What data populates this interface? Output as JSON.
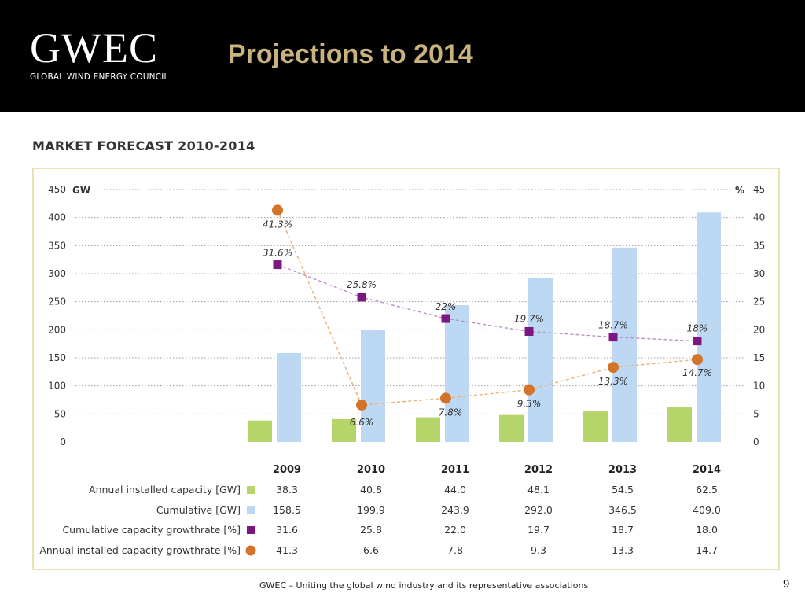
{
  "header": {
    "logo_text": "GWEC",
    "logo_subtitle": "GLOBAL WIND ENERGY COUNCIL",
    "title": "Projections to 2014"
  },
  "section_title": "MARKET FORECAST 2010-2014",
  "footer": {
    "text": "GWEC – Uniting the global wind industry and its representative associations",
    "page_number": "9"
  },
  "colors": {
    "header_bg": "#000000",
    "title": "#c8b27d",
    "annual_bar": "#b5d56a",
    "cumulative_bar": "#bcd8f3",
    "cum_growth": "#7b177f",
    "annual_growth": "#d4732a",
    "frame": "#e9e2b3"
  },
  "chart_data": {
    "type": "bar",
    "categories": [
      "2009",
      "2010",
      "2011",
      "2012",
      "2013",
      "2014"
    ],
    "left_axis": {
      "unit": "GW",
      "range": [
        0,
        450
      ],
      "ticks": [
        "0",
        "50",
        "100",
        "150",
        "200",
        "250",
        "300",
        "350",
        "400",
        "450"
      ]
    },
    "right_axis": {
      "unit": "%",
      "range": [
        0,
        45
      ],
      "ticks": [
        "0",
        "5",
        "10",
        "15",
        "20",
        "25",
        "30",
        "35",
        "40",
        "45"
      ]
    },
    "grid": true,
    "series": [
      {
        "name": "Annual installed capacity [GW]",
        "kind": "bar",
        "axis": "left",
        "color": "#b5d56a",
        "values": [
          38.3,
          40.8,
          44.0,
          48.1,
          54.5,
          62.5
        ],
        "table_values": [
          "38.3",
          "40.8",
          "44.0",
          "48.1",
          "54.5",
          "62.5"
        ]
      },
      {
        "name": "Cumulative [GW]",
        "kind": "bar",
        "axis": "left",
        "color": "#bcd8f3",
        "values": [
          158.5,
          199.9,
          243.9,
          292.0,
          346.5,
          409.0
        ],
        "table_values": [
          "158.5",
          "199.9",
          "243.9",
          "292.0",
          "346.5",
          "409.0"
        ]
      },
      {
        "name": "Cumulative capacity growthrate [%]",
        "kind": "line",
        "marker": "square",
        "axis": "right",
        "color": "#7b177f",
        "values": [
          31.6,
          25.8,
          22.0,
          19.7,
          18.7,
          18.0
        ],
        "point_labels": [
          "31.6%",
          "25.8%",
          "22%",
          "19.7%",
          "18.7%",
          "18%"
        ],
        "table_values": [
          "31.6",
          "25.8",
          "22.0",
          "19.7",
          "18.7",
          "18.0"
        ]
      },
      {
        "name": "Annual installed capacity growthrate [%]",
        "kind": "line",
        "marker": "circle",
        "axis": "right",
        "color": "#d4732a",
        "values": [
          41.3,
          6.6,
          7.8,
          9.3,
          13.3,
          14.7
        ],
        "point_labels": [
          "41.3%",
          "6.6%",
          "7.8%",
          "9.3%",
          "13.3%",
          "14.7%"
        ],
        "table_values": [
          "41.3",
          "6.6",
          "7.8",
          "9.3",
          "13.3",
          "14.7"
        ]
      }
    ]
  }
}
